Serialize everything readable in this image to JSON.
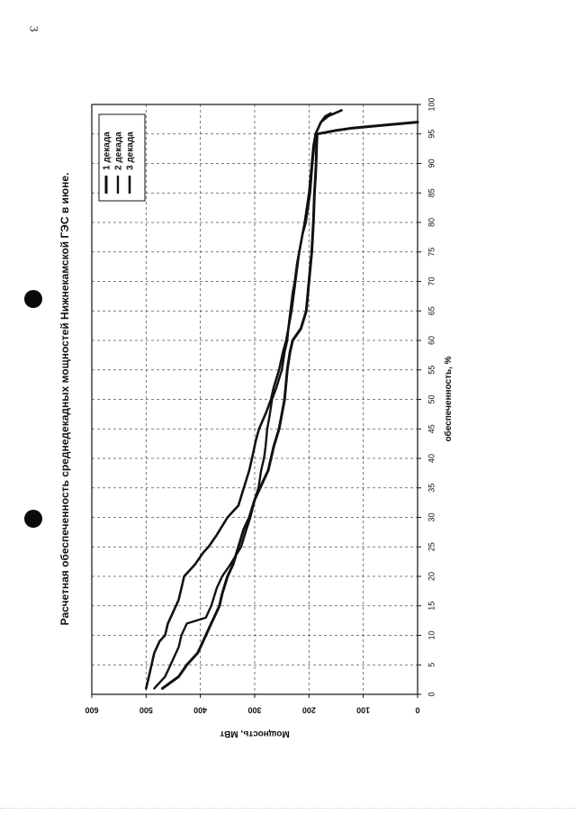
{
  "page": {
    "number": "3"
  },
  "chart_data": {
    "type": "line",
    "title": "Расчетная обеспеченность среднедекадных мощностей Нижнекамской ГЭС в июне.",
    "xlabel": "обеспеченность, %",
    "ylabel": "Мощность, МВт",
    "xlim": [
      0,
      100
    ],
    "ylim": [
      0,
      600
    ],
    "x_ticks": [
      "0",
      "5",
      "10",
      "15",
      "20",
      "25",
      "30",
      "35",
      "40",
      "45",
      "50",
      "55",
      "60",
      "65",
      "70",
      "75",
      "80",
      "85",
      "90",
      "95",
      "100"
    ],
    "y_ticks": [
      "0",
      "100",
      "200",
      "300",
      "400",
      "500",
      "600"
    ],
    "grid": true,
    "orientation": "rotated 90° clockwise",
    "legend_position": "top-right",
    "colors": {
      "line": "#111111",
      "grid": "#555555",
      "frame": "#111111"
    },
    "series": [
      {
        "name": "1 декада",
        "points": [
          [
            1,
            470
          ],
          [
            2,
            455
          ],
          [
            3,
            440
          ],
          [
            5,
            425
          ],
          [
            7,
            405
          ],
          [
            8,
            400
          ],
          [
            10,
            390
          ],
          [
            12,
            380
          ],
          [
            13,
            375
          ],
          [
            15,
            365
          ],
          [
            17,
            360
          ],
          [
            20,
            350
          ],
          [
            22,
            340
          ],
          [
            25,
            330
          ],
          [
            28,
            320
          ],
          [
            30,
            310
          ],
          [
            33,
            300
          ],
          [
            35,
            290
          ],
          [
            38,
            275
          ],
          [
            40,
            270
          ],
          [
            42,
            265
          ],
          [
            45,
            255
          ],
          [
            50,
            245
          ],
          [
            55,
            240
          ],
          [
            58,
            235
          ],
          [
            60,
            230
          ],
          [
            62,
            215
          ],
          [
            65,
            205
          ],
          [
            70,
            200
          ],
          [
            75,
            195
          ],
          [
            80,
            192
          ],
          [
            85,
            190
          ],
          [
            88,
            188
          ],
          [
            90,
            187
          ],
          [
            93,
            186
          ],
          [
            95,
            185
          ],
          [
            95.6,
            150
          ],
          [
            96,
            120
          ],
          [
            96.5,
            60
          ],
          [
            97,
            0
          ]
        ]
      },
      {
        "name": "2 декада",
        "points": [
          [
            1,
            485
          ],
          [
            2,
            475
          ],
          [
            3,
            465
          ],
          [
            5,
            455
          ],
          [
            8,
            440
          ],
          [
            10,
            435
          ],
          [
            12,
            425
          ],
          [
            13,
            390
          ],
          [
            15,
            380
          ],
          [
            18,
            370
          ],
          [
            20,
            360
          ],
          [
            22,
            345
          ],
          [
            25,
            325
          ],
          [
            28,
            315
          ],
          [
            30,
            308
          ],
          [
            33,
            300
          ],
          [
            35,
            293
          ],
          [
            38,
            288
          ],
          [
            40,
            283
          ],
          [
            42,
            280
          ],
          [
            45,
            277
          ],
          [
            47,
            273
          ],
          [
            50,
            268
          ],
          [
            52,
            260
          ],
          [
            55,
            250
          ],
          [
            58,
            245
          ],
          [
            60,
            240
          ],
          [
            62,
            238
          ],
          [
            65,
            232
          ],
          [
            70,
            225
          ],
          [
            75,
            218
          ],
          [
            80,
            208
          ],
          [
            85,
            200
          ],
          [
            90,
            195
          ],
          [
            93,
            192
          ],
          [
            95,
            188
          ],
          [
            97,
            178
          ],
          [
            98,
            170
          ],
          [
            98.5,
            160
          ]
        ]
      },
      {
        "name": "3 декада",
        "points": [
          [
            1,
            500
          ],
          [
            3,
            495
          ],
          [
            5,
            490
          ],
          [
            7,
            485
          ],
          [
            9,
            475
          ],
          [
            10,
            465
          ],
          [
            12,
            460
          ],
          [
            14,
            450
          ],
          [
            16,
            440
          ],
          [
            18,
            435
          ],
          [
            20,
            430
          ],
          [
            22,
            410
          ],
          [
            24,
            395
          ],
          [
            25,
            385
          ],
          [
            27,
            370
          ],
          [
            30,
            350
          ],
          [
            32,
            330
          ],
          [
            35,
            320
          ],
          [
            38,
            310
          ],
          [
            40,
            305
          ],
          [
            43,
            298
          ],
          [
            45,
            292
          ],
          [
            48,
            278
          ],
          [
            50,
            270
          ],
          [
            52,
            265
          ],
          [
            55,
            255
          ],
          [
            58,
            248
          ],
          [
            60,
            242
          ],
          [
            62,
            238
          ],
          [
            65,
            234
          ],
          [
            68,
            230
          ],
          [
            70,
            226
          ],
          [
            73,
            222
          ],
          [
            75,
            218
          ],
          [
            78,
            212
          ],
          [
            80,
            206
          ],
          [
            85,
            198
          ],
          [
            90,
            194
          ],
          [
            95,
            188
          ],
          [
            97,
            178
          ],
          [
            98,
            165
          ],
          [
            99,
            140
          ]
        ]
      }
    ]
  }
}
